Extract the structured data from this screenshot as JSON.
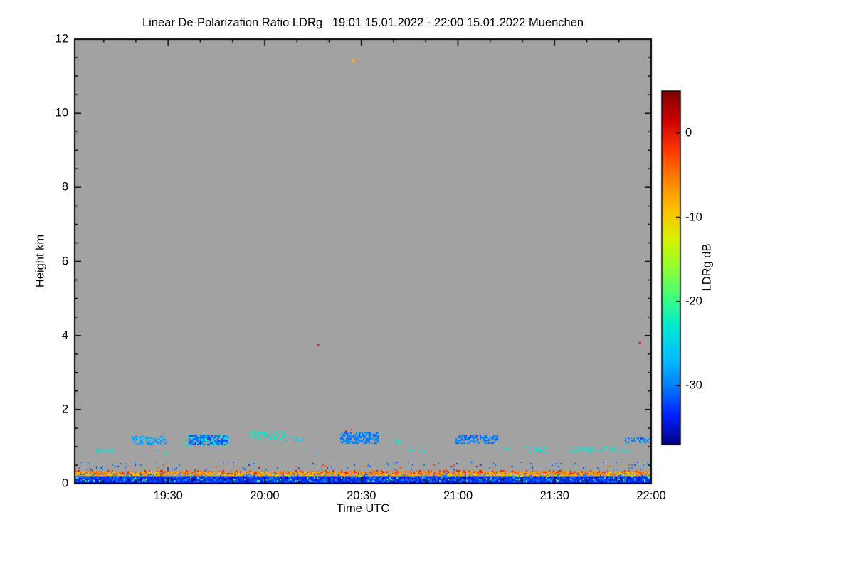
{
  "figure": {
    "title": "Linear De-Polarization Ratio LDRg   19:01 15.01.2022 - 22:00 15.01.2022 Muenchen"
  },
  "chart_data": {
    "type": "heatmap",
    "title": "Linear De-Polarization Ratio LDRg   19:01 15.01.2022 - 22:00 15.01.2022 Muenchen",
    "station": "Muenchen",
    "time_start": "19:01 15.01.2022",
    "time_end": "22:00 15.01.2022",
    "xlabel": "Time UTC",
    "ylabel": "Height km",
    "x_span_minutes": 179,
    "x_minor_offset_minutes": 9,
    "x_minor_step_minutes": 10,
    "x_ticks": [
      {
        "label": "19:30",
        "minutes": 29
      },
      {
        "label": "20:00",
        "minutes": 59
      },
      {
        "label": "20:30",
        "minutes": 89
      },
      {
        "label": "21:00",
        "minutes": 119
      },
      {
        "label": "21:30",
        "minutes": 149
      },
      {
        "label": "22:00",
        "minutes": 179
      }
    ],
    "ylim": [
      0,
      12
    ],
    "y_ticks": [
      0,
      2,
      4,
      6,
      8,
      10,
      12
    ],
    "y_minor_step": 0.5,
    "background_color": "#a2a2a2",
    "no_data_meaning": "grey background = no signal",
    "colorbar": {
      "label": "LDRg dB",
      "ticks": [
        0,
        -10,
        -20,
        -30
      ],
      "vmin": -37,
      "vmax": 5,
      "colors_low_to_high": [
        "#000087",
        "#0020ff",
        "#0080ff",
        "#00c0ff",
        "#00e8d0",
        "#40ff80",
        "#90ff30",
        "#d8f000",
        "#ffc000",
        "#ff8000",
        "#ff3800",
        "#cc0000",
        "#7f0000"
      ]
    },
    "features": [
      {
        "name": "surface-echo-band",
        "style": "solid",
        "t": [
          0,
          179
        ],
        "h": [
          0.02,
          0.2
        ],
        "db": -33
      },
      {
        "name": "surface-band-texture",
        "style": "speckle",
        "t": [
          0,
          179
        ],
        "h": [
          0.02,
          0.2
        ],
        "db": -36,
        "density": 0.3,
        "jitter": 2
      },
      {
        "name": "surface-band-speckle",
        "style": "speckle",
        "t": [
          0,
          179
        ],
        "h": [
          0.04,
          0.26
        ],
        "db": -30,
        "density": 0.3,
        "jitter": 4
      },
      {
        "name": "surface-band-bright-specks",
        "style": "speckle",
        "t": [
          0,
          179
        ],
        "h": [
          0.05,
          0.28
        ],
        "db": -18,
        "density": 0.05,
        "jitter": 6
      },
      {
        "name": "aerosol-layer-yellow",
        "style": "speckle",
        "t": [
          0,
          179
        ],
        "h": [
          0.23,
          0.32
        ],
        "db": -9,
        "density": 0.5,
        "jitter": 3
      },
      {
        "name": "aerosol-layer-orange",
        "style": "speckle",
        "t": [
          0,
          179
        ],
        "h": [
          0.24,
          0.34
        ],
        "db": -5,
        "density": 0.35,
        "jitter": 3
      },
      {
        "name": "aerosol-layer-red",
        "style": "speckle",
        "t": [
          0,
          179
        ],
        "h": [
          0.26,
          0.36
        ],
        "db": -1,
        "density": 0.12,
        "jitter": 2
      },
      {
        "name": "noise-low-blue",
        "style": "speckle",
        "t": [
          0,
          179
        ],
        "h": [
          0.36,
          0.6
        ],
        "db": -31,
        "density": 0.04,
        "jitter": 4
      },
      {
        "name": "noise-low-warm",
        "style": "speckle",
        "t": [
          0,
          179
        ],
        "h": [
          0.34,
          0.52
        ],
        "db": -3,
        "density": 0.015,
        "jitter": 3
      },
      {
        "name": "cloud-patch-1",
        "style": "speckle",
        "t": [
          5.5,
          12.2
        ],
        "h": [
          0.82,
          0.95
        ],
        "db": -23,
        "density": 0.3,
        "jitter": 3
      },
      {
        "name": "cloud-patch-2",
        "style": "speckle",
        "t": [
          17.7,
          28.7
        ],
        "h": [
          1.08,
          1.28
        ],
        "db": -28,
        "density": 0.5,
        "jitter": 4
      },
      {
        "name": "cloud-patch-3",
        "style": "speckle",
        "t": [
          24.3,
          28.7
        ],
        "h": [
          0.78,
          0.9
        ],
        "db": -23,
        "density": 0.25,
        "jitter": 3
      },
      {
        "name": "cloud-patch-4",
        "style": "speckle",
        "t": [
          35.4,
          47.5
        ],
        "h": [
          1.05,
          1.3
        ],
        "db": -31,
        "density": 0.7,
        "jitter": 4
      },
      {
        "name": "cloud-patch-4-fringe",
        "style": "speckle",
        "t": [
          34,
          48.5
        ],
        "h": [
          1.0,
          1.35
        ],
        "db": -23,
        "density": 0.15,
        "jitter": 3
      },
      {
        "name": "cloud-patch-5",
        "style": "speckle",
        "t": [
          54.1,
          65.2
        ],
        "h": [
          1.2,
          1.42
        ],
        "db": -23,
        "density": 0.4,
        "jitter": 3
      },
      {
        "name": "cloud-patch-6",
        "style": "speckle",
        "t": [
          65.2,
          70.7
        ],
        "h": [
          1.15,
          1.3
        ],
        "db": -24,
        "density": 0.25,
        "jitter": 3
      },
      {
        "name": "cloud-patch-7",
        "style": "speckle",
        "t": [
          71.4,
          75.8
        ],
        "h": [
          0.8,
          0.93
        ],
        "db": -23,
        "density": 0.25,
        "jitter": 3
      },
      {
        "name": "cloud-patch-8",
        "style": "speckle",
        "t": [
          82.4,
          94.4
        ],
        "h": [
          1.08,
          1.38
        ],
        "db": -30,
        "density": 0.6,
        "jitter": 4
      },
      {
        "name": "cloud-patch-8-top-specks",
        "style": "speckle",
        "t": [
          83,
          93
        ],
        "h": [
          1.36,
          1.47
        ],
        "db": 0,
        "density": 0.1,
        "jitter": 2
      },
      {
        "name": "cloud-patch-9",
        "style": "speckle",
        "t": [
          97.2,
          101.7
        ],
        "h": [
          1.08,
          1.2
        ],
        "db": -23,
        "density": 0.22,
        "jitter": 3
      },
      {
        "name": "cloud-patch-10",
        "style": "speckle",
        "t": [
          104,
          109.4
        ],
        "h": [
          0.85,
          0.95
        ],
        "db": -23,
        "density": 0.12,
        "jitter": 3
      },
      {
        "name": "cloud-patch-11",
        "style": "speckle",
        "t": [
          118.2,
          131.5
        ],
        "h": [
          1.08,
          1.3
        ],
        "db": -30,
        "density": 0.55,
        "jitter": 4
      },
      {
        "name": "cloud-patch-12",
        "style": "speckle",
        "t": [
          131.5,
          135.5
        ],
        "h": [
          0.9,
          1.0
        ],
        "db": -23,
        "density": 0.25,
        "jitter": 3
      },
      {
        "name": "cloud-patch-13",
        "style": "speckle",
        "t": [
          139.9,
          147.4
        ],
        "h": [
          0.82,
          1.0
        ],
        "db": -23,
        "density": 0.3,
        "jitter": 3
      },
      {
        "name": "cloud-patch-14",
        "style": "speckle",
        "t": [
          153.6,
          172.4
        ],
        "h": [
          0.85,
          1.0
        ],
        "db": -23,
        "density": 0.28,
        "jitter": 3
      },
      {
        "name": "cloud-patch-15",
        "style": "speckle",
        "t": [
          170.8,
          179
        ],
        "h": [
          1.1,
          1.25
        ],
        "db": -30,
        "density": 0.45,
        "jitter": 4
      },
      {
        "name": "isolated-echo-11km",
        "style": "dot",
        "t": [
          86.6
        ],
        "h": [
          11.42
        ],
        "db": -8,
        "r": 2
      },
      {
        "name": "isolated-echo-3_7km",
        "style": "dot",
        "t": [
          75.6
        ],
        "h": [
          3.75
        ],
        "db": 0,
        "r": 1.5
      },
      {
        "name": "isolated-echo-right-3_8km",
        "style": "dot",
        "t": [
          175.5
        ],
        "h": [
          3.8
        ],
        "db": 0,
        "r": 1.5
      }
    ]
  }
}
